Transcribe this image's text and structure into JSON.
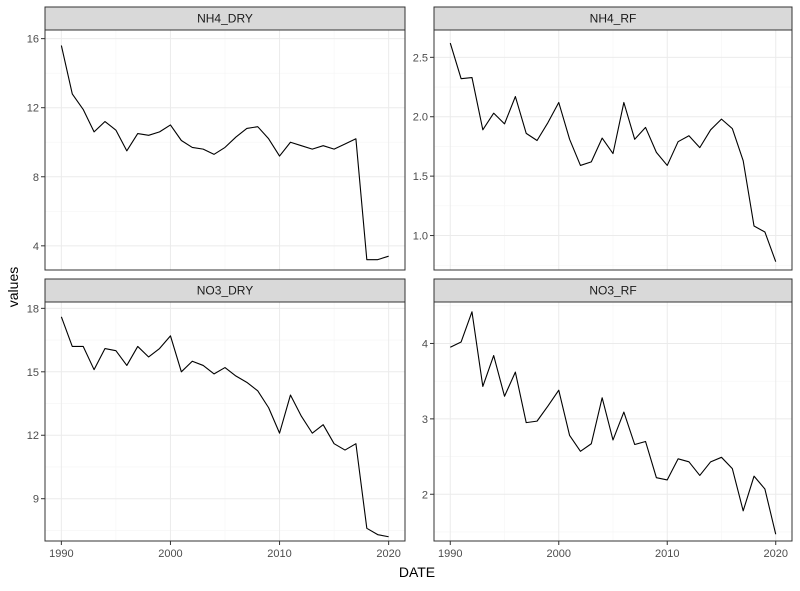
{
  "chart_data": {
    "type": "line",
    "x_label": "DATE",
    "y_label": "values",
    "colors": {
      "line": "#000000",
      "panel_border": "#333333",
      "strip_fill": "#d9d9d9",
      "grid_major": "#ebebeb",
      "grid_minor": "#f5f5f5",
      "tick_text": "#4d4d4d"
    },
    "x": [
      1990,
      1991,
      1992,
      1993,
      1994,
      1995,
      1996,
      1997,
      1998,
      1999,
      2000,
      2001,
      2002,
      2003,
      2004,
      2005,
      2006,
      2007,
      2008,
      2009,
      2010,
      2011,
      2012,
      2013,
      2014,
      2015,
      2016,
      2017,
      2018,
      2019,
      2020
    ],
    "x_ticks": [
      1990,
      2000,
      2010,
      2020
    ],
    "panels": [
      {
        "name": "NH4_DRY",
        "y_ticks": [
          4,
          8,
          12,
          16
        ],
        "ylim": [
          2.6,
          16.5
        ],
        "values": [
          15.6,
          12.8,
          11.9,
          10.6,
          11.2,
          10.7,
          9.5,
          10.5,
          10.4,
          10.6,
          11.0,
          10.1,
          9.7,
          9.6,
          9.3,
          9.7,
          10.3,
          10.8,
          10.9,
          10.2,
          9.2,
          10.0,
          9.8,
          9.6,
          9.8,
          9.6,
          9.9,
          10.2,
          3.2,
          3.2,
          3.4
        ]
      },
      {
        "name": "NH4_RF",
        "y_ticks": [
          1.0,
          1.5,
          2.0,
          2.5
        ],
        "ylim": [
          0.71,
          2.73
        ],
        "values": [
          2.62,
          2.32,
          2.33,
          1.89,
          2.03,
          1.94,
          2.17,
          1.86,
          1.8,
          1.95,
          2.12,
          1.81,
          1.59,
          1.62,
          1.82,
          1.69,
          2.12,
          1.81,
          1.91,
          1.7,
          1.59,
          1.79,
          1.84,
          1.74,
          1.89,
          1.98,
          1.9,
          1.63,
          1.08,
          1.03,
          0.78
        ]
      },
      {
        "name": "NO3_DRY",
        "y_ticks": [
          9,
          12,
          15,
          18
        ],
        "ylim": [
          7.0,
          18.3
        ],
        "values": [
          17.6,
          16.2,
          16.2,
          15.1,
          16.1,
          16.0,
          15.3,
          16.2,
          15.7,
          16.1,
          16.7,
          15.0,
          15.5,
          15.3,
          14.9,
          15.2,
          14.8,
          14.5,
          14.1,
          13.3,
          12.1,
          13.9,
          12.9,
          12.1,
          12.5,
          11.6,
          11.3,
          11.6,
          7.6,
          7.3,
          7.2
        ]
      },
      {
        "name": "NO3_RF",
        "y_ticks": [
          2,
          3,
          4
        ],
        "ylim": [
          1.38,
          4.55
        ],
        "values": [
          3.95,
          4.02,
          4.42,
          3.43,
          3.84,
          3.3,
          3.62,
          2.95,
          2.97,
          3.17,
          3.38,
          2.78,
          2.57,
          2.67,
          3.28,
          2.72,
          3.09,
          2.66,
          2.7,
          2.22,
          2.19,
          2.47,
          2.43,
          2.25,
          2.43,
          2.49,
          2.34,
          1.78,
          2.24,
          2.07,
          1.47
        ]
      }
    ]
  }
}
